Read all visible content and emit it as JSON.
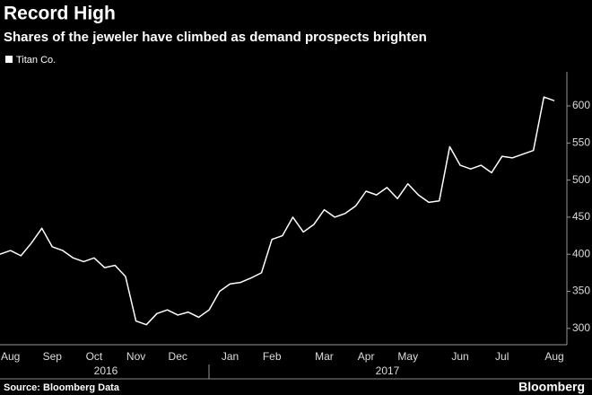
{
  "chart_data": {
    "type": "line",
    "title": "Record High",
    "subtitle": "Shares of the jeweler have climbed as demand prospects brighten",
    "source": "Source: Bloomberg Data",
    "brand": "Bloomberg",
    "categories": [
      null,
      "Aug",
      null,
      null,
      null,
      "Sep",
      null,
      null,
      null,
      "Oct",
      null,
      null,
      null,
      "Nov",
      null,
      null,
      null,
      "Dec",
      null,
      null,
      null,
      null,
      "Jan",
      null,
      null,
      null,
      "Feb",
      null,
      null,
      null,
      null,
      "Mar",
      null,
      null,
      null,
      "Apr",
      null,
      null,
      null,
      "May",
      null,
      null,
      null,
      null,
      "Jun",
      null,
      null,
      null,
      "Jul",
      null,
      null,
      null,
      null,
      "Aug"
    ],
    "year_labels": [
      "2016",
      "2017"
    ],
    "series": [
      {
        "name": "Titan Co.",
        "color": "#ffffff",
        "values": [
          400,
          405,
          398,
          415,
          435,
          410,
          405,
          395,
          390,
          395,
          382,
          385,
          370,
          310,
          305,
          320,
          325,
          318,
          322,
          315,
          325,
          350,
          360,
          362,
          368,
          375,
          420,
          425,
          450,
          430,
          440,
          460,
          450,
          455,
          465,
          485,
          480,
          490,
          475,
          495,
          480,
          470,
          472,
          545,
          520,
          515,
          520,
          510,
          532,
          530,
          535,
          540,
          612,
          607
        ]
      }
    ],
    "ylim": [
      278,
      646
    ],
    "yticks": [
      300,
      350,
      400,
      450,
      500,
      550,
      600
    ],
    "grid": false
  }
}
